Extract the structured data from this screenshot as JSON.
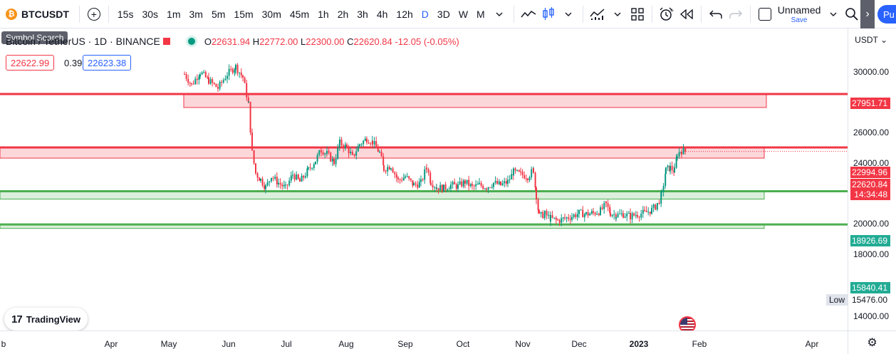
{
  "toolbar": {
    "symbol": "BTCUSDT",
    "intervals": [
      "15s",
      "30s",
      "1m",
      "3m",
      "5m",
      "15m",
      "30m",
      "45m",
      "1h",
      "2h",
      "3h",
      "4h",
      "12h",
      "D",
      "3D",
      "W",
      "M"
    ],
    "active_interval": "D",
    "layout_name": "Unnamed",
    "save_label": "Save",
    "publish_label": "Pu"
  },
  "tooltip": "Symbol Search",
  "legend": {
    "title": "Bitcoin / TetherUS · 1D · BINANCE",
    "o_label": "O",
    "o": "22631.94",
    "h_label": "H",
    "h": "22772.00",
    "l_label": "L",
    "l": "22300.00",
    "c_label": "C",
    "c": "22620.84",
    "change": "-12.05 (-0.05%)"
  },
  "quote": {
    "bid": "22622.99",
    "spread": "0.39",
    "ask": "22623.38"
  },
  "price_axis": {
    "currency": "USDT",
    "ticks": [
      "30000.00",
      "26000.00",
      "24000.00",
      "20000.00",
      "18000.00",
      "14000.00"
    ],
    "tags": {
      "resistance_high": "27951.71",
      "high": "22994.96",
      "last": "22620.84",
      "countdown": "14:34:48",
      "support_mid": "18926.69",
      "support_low": "15840.41",
      "low": "15476.00"
    },
    "low_label": "Low"
  },
  "time_axis": {
    "labels": [
      "b",
      "Apr",
      "May",
      "Jun",
      "Jul",
      "Aug",
      "Sep",
      "Oct",
      "Nov",
      "Dec",
      "2023",
      "Feb",
      "Apr"
    ]
  },
  "branding": "TradingView",
  "colors": {
    "up": "#089981",
    "down": "#f23645",
    "accent": "#2962ff",
    "resistance": "#f23645",
    "support": "#4caf50"
  },
  "chart_data": {
    "type": "candlestick",
    "x": [
      "May",
      "Jun",
      "Jul",
      "Aug",
      "Sep",
      "Oct",
      "Nov",
      "Dec",
      "2023",
      "Feb"
    ],
    "close": [
      29500,
      20000,
      21500,
      23300,
      20000,
      19400,
      20600,
      17000,
      16600,
      22620
    ],
    "zones": [
      {
        "type": "resistance",
        "from": 26700,
        "to": 27951.71
      },
      {
        "type": "resistance",
        "from": 22000,
        "to": 22994.96
      },
      {
        "type": "support",
        "from": 18200,
        "to": 18926.69
      },
      {
        "type": "support",
        "from": 15476,
        "to": 15840.41
      }
    ],
    "ylim": [
      14000,
      32000
    ]
  }
}
